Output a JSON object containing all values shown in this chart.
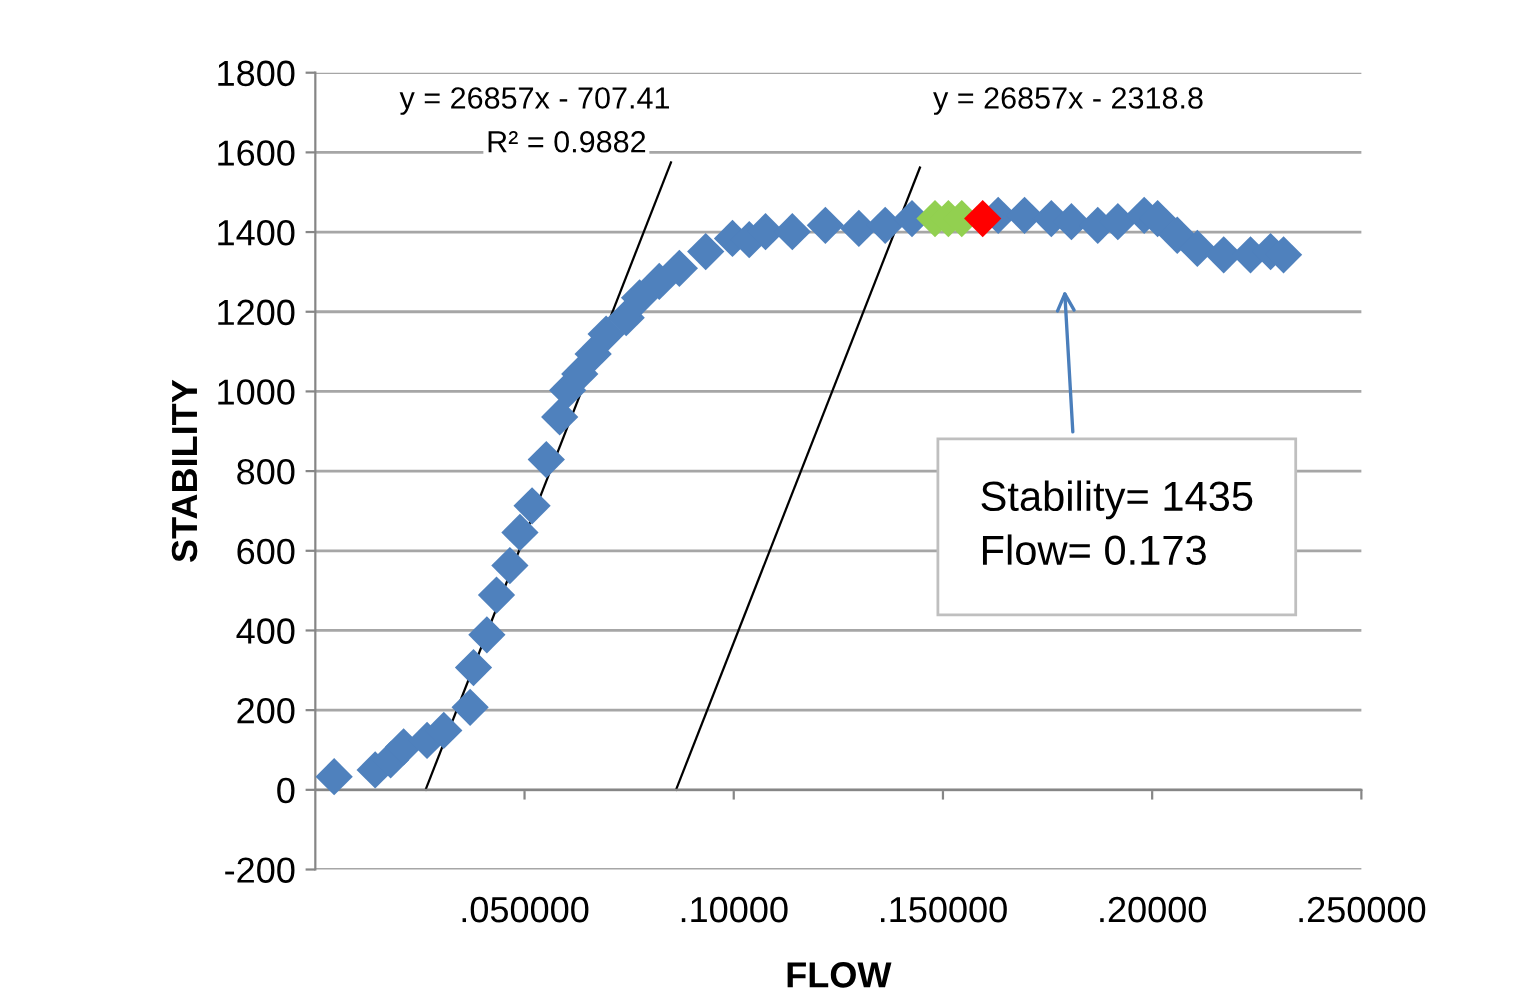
{
  "chart_data": {
    "type": "scatter",
    "xlabel": "FLOW",
    "ylabel": "STABILITY",
    "xlim": [
      0,
      0.25
    ],
    "ylim": [
      -200,
      1800
    ],
    "xticks": [
      {
        "value": 0.05,
        "label": ".050000"
      },
      {
        "value": 0.1,
        "label": ".10000"
      },
      {
        "value": 0.15,
        "label": ".150000"
      },
      {
        "value": 0.2,
        "label": ".20000"
      },
      {
        "value": 0.25,
        "label": ".250000"
      }
    ],
    "yticks": [
      -200,
      0,
      200,
      400,
      600,
      800,
      1000,
      1200,
      1400,
      1600,
      1800
    ],
    "grid": "y",
    "series": [
      {
        "marker": "diamond",
        "color": "#4f81bd",
        "x": [
          0.0045,
          0.0143,
          0.018,
          0.0211,
          0.0267,
          0.0307,
          0.0346,
          0.037,
          0.0378,
          0.041,
          0.0433,
          0.0465,
          0.0489,
          0.0518,
          0.0552,
          0.0584,
          0.0603,
          0.0632,
          0.0664,
          0.0695,
          0.0743,
          0.0775,
          0.0822,
          0.087,
          0.0933,
          0.0997,
          0.1037,
          0.1076,
          0.114,
          0.1219,
          0.1299,
          0.1362,
          0.1426,
          0.1632,
          0.1695,
          0.1759,
          0.1807,
          0.187,
          0.1918,
          0.1981,
          0.2013,
          0.206,
          0.2108,
          0.2171,
          0.2235,
          0.2283,
          0.2314
        ],
        "values": [
          33,
          50,
          75,
          108,
          124,
          149,
          null,
          207,
          307,
          389,
          489,
          563,
          646,
          713,
          829,
          936,
          1003,
          1044,
          1094,
          1144,
          1185,
          1235,
          1276,
          1309,
          1351,
          1384,
          1381,
          1401,
          1401,
          1417,
          1409,
          1417,
          1434,
          1442,
          1442,
          1434,
          1426,
          1417,
          1426,
          1442,
          1434,
          1392,
          1359,
          1343,
          1343,
          1351,
          1343
        ]
      },
      {
        "marker": "diamond",
        "color": "#92d050",
        "x": [
          0.1481,
          0.1513,
          0.1545
        ],
        "values": [
          1434,
          1434,
          1434
        ]
      },
      {
        "marker": "diamond",
        "color": "#ff0000",
        "x": [
          0.1595
        ],
        "values": [
          1434
        ]
      },
      {
        "type": "line",
        "marker": "none",
        "color": "#000000",
        "x": [
          0.02634,
          0.085
        ],
        "values": [
          0,
          1575
        ]
      },
      {
        "type": "line",
        "marker": "none",
        "color": "#000000",
        "x": [
          0.0862,
          0.1445
        ],
        "values": [
          0,
          1562
        ]
      }
    ],
    "annotations": [
      "y = 26857x - 707.41",
      "R² = 0.9882",
      "y = 26857x - 2318.8",
      "Stability= 1435\nFlow= 0.173"
    ]
  }
}
